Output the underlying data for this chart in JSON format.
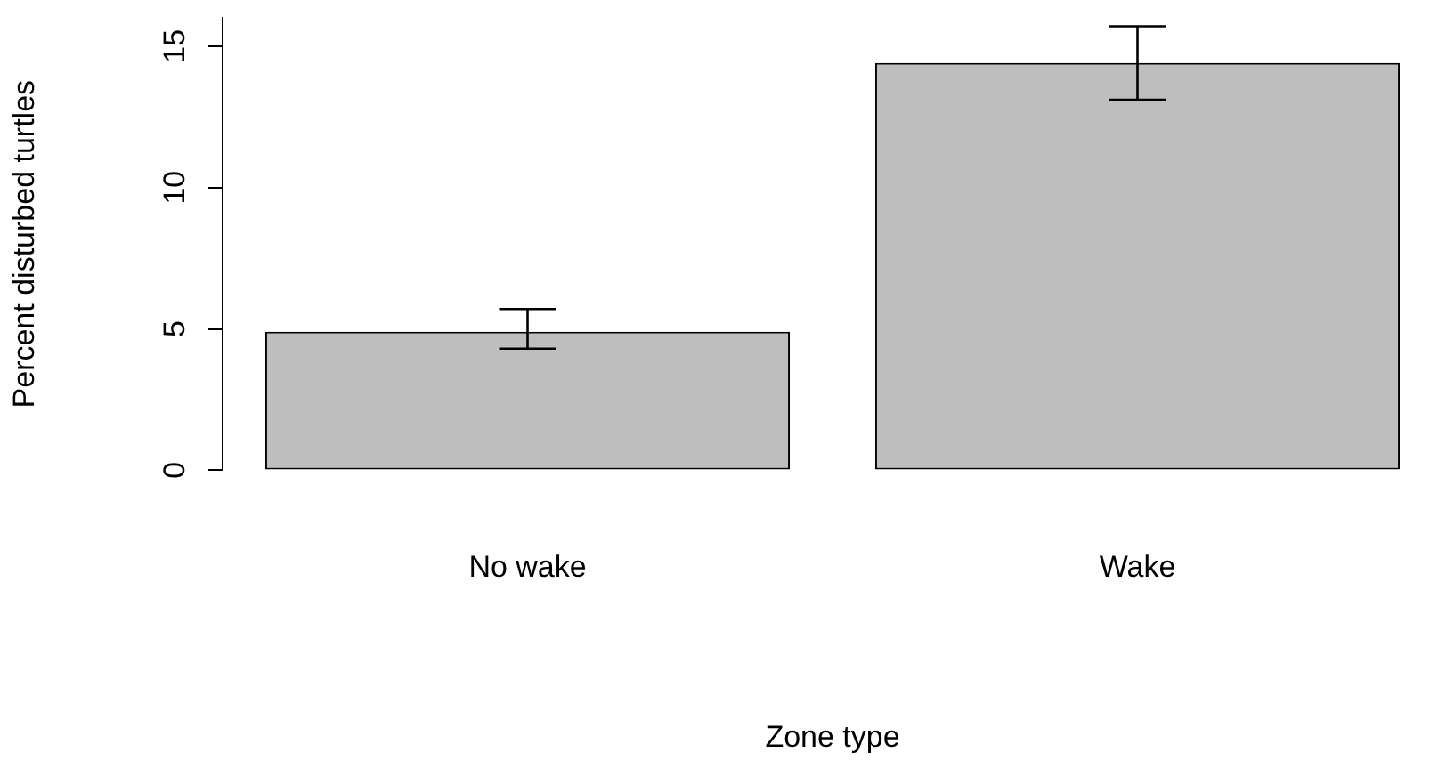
{
  "chart_data": {
    "type": "bar",
    "xlabel": "Zone type",
    "ylabel": "Percent disturbed turtles",
    "categories": [
      "No wake",
      "Wake"
    ],
    "values": [
      4.9,
      14.4
    ],
    "errors": [
      [
        4.3,
        5.7
      ],
      [
        13.1,
        15.7
      ]
    ],
    "color": "#bebebe",
    "ylim": [
      0,
      16
    ],
    "yticks": [
      0,
      5,
      10,
      15
    ],
    "grid": false,
    "legend": false
  }
}
